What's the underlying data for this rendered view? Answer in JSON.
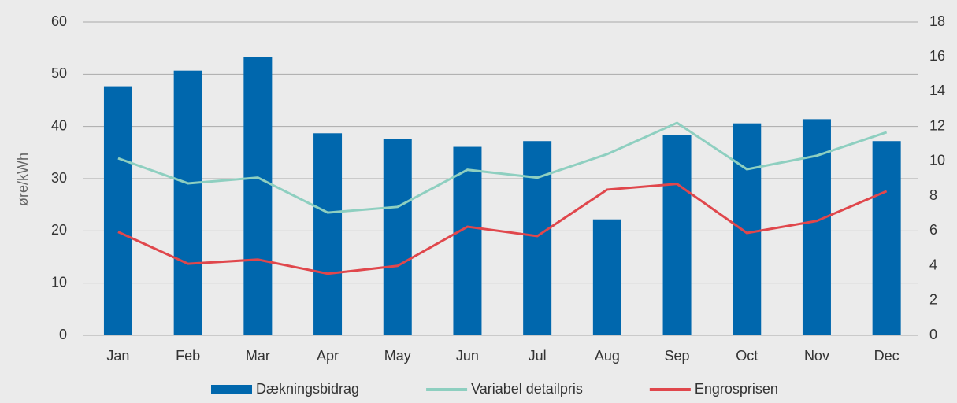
{
  "chart_data": {
    "type": "bar_line",
    "y_label": "øre/kWh",
    "categories": [
      "Jan",
      "Feb",
      "Mar",
      "Apr",
      "May",
      "Jun",
      "Jul",
      "Aug",
      "Sep",
      "Oct",
      "Nov",
      "Dec"
    ],
    "series": [
      {
        "name": "Dækningsbidrag",
        "type": "bar",
        "color": "#0067ad",
        "values": [
          47.7,
          50.7,
          53.3,
          38.7,
          37.6,
          36.1,
          37.2,
          22.2,
          38.4,
          40.6,
          41.4,
          37.2
        ]
      },
      {
        "name": "Variabel detailpris",
        "type": "line",
        "color": "#8ecfc0",
        "values": [
          33.9,
          29.1,
          30.2,
          23.5,
          24.6,
          31.7,
          30.2,
          34.7,
          40.7,
          31.8,
          34.4,
          38.9
        ]
      },
      {
        "name": "Engrosprisen",
        "type": "line",
        "color": "#e0474c",
        "values": [
          19.8,
          13.7,
          14.5,
          11.8,
          13.3,
          20.8,
          19.0,
          27.9,
          29.0,
          19.6,
          21.9,
          27.6
        ]
      }
    ],
    "ylim": [
      0,
      60
    ],
    "yticks": [
      0,
      10,
      20,
      30,
      40,
      50,
      60
    ],
    "y2lim": [
      0,
      18
    ],
    "y2ticks": [
      0,
      2,
      4,
      6,
      8,
      10,
      12,
      14,
      16,
      18
    ],
    "grid": true,
    "legend": "bottom"
  }
}
